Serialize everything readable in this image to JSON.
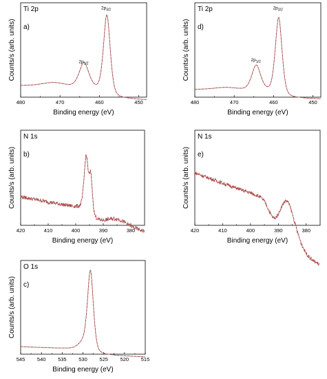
{
  "chart_data": [
    {
      "id": "a",
      "type": "line",
      "title": "Ti 2p",
      "letter": "a)",
      "xlabel": "Binding energy (eV)",
      "ylabel": "Counts/s (arb. units)",
      "xlim": [
        480,
        448
      ],
      "ylim": [
        0,
        100
      ],
      "xticks": [
        480,
        470,
        460,
        450
      ],
      "peaks": [
        {
          "x": 458.1,
          "h": 84,
          "w": 0.9
        },
        {
          "x": 463.9,
          "h": 27,
          "w": 1.3
        },
        {
          "x": 471.5,
          "h": 5,
          "w": 3.5
        }
      ],
      "baseline": {
        "left": 12,
        "right": 5,
        "step_x": 458.5,
        "step_h": 8
      },
      "annotations": [
        {
          "x": 464.0,
          "y": 36,
          "main": "2p",
          "sub": "1/2"
        },
        {
          "x": 458.3,
          "y": 93,
          "main": "2p",
          "sub": "3/2"
        }
      ]
    },
    {
      "id": "d",
      "type": "line",
      "title": "Ti 2p",
      "letter": "d)",
      "xlabel": "Binding energy (eV)",
      "ylabel": "Counts/s (arb. units)",
      "xlim": [
        480,
        448
      ],
      "ylim": [
        0,
        100
      ],
      "xticks": [
        480,
        470,
        460,
        450
      ],
      "peaks": [
        {
          "x": 458.7,
          "h": 82,
          "w": 0.9
        },
        {
          "x": 464.4,
          "h": 27,
          "w": 1.2
        },
        {
          "x": 472.0,
          "h": 3,
          "w": 3.5
        }
      ],
      "baseline": {
        "left": 8,
        "right": 4,
        "step_x": 459.0,
        "step_h": 6
      },
      "annotations": [
        {
          "x": 464.5,
          "y": 38,
          "main": "2p",
          "sub": "1/2"
        },
        {
          "x": 458.9,
          "y": 93,
          "main": "2p",
          "sub": "3/2"
        }
      ]
    },
    {
      "id": "b",
      "type": "line",
      "title": "N 1s",
      "letter": "b)",
      "xlabel": "Binding energy (eV)",
      "ylabel": "Counts/s (arb. units)",
      "xlim": [
        420,
        375
      ],
      "ylim": [
        0,
        100
      ],
      "xticks": [
        420,
        410,
        400,
        390,
        380
      ],
      "peaks": [
        {
          "x": 396.2,
          "h": 58,
          "w": 0.8
        },
        {
          "x": 394.5,
          "h": 38,
          "w": 0.6
        },
        {
          "x": 385.0,
          "h": 8,
          "w": 4.0
        }
      ],
      "baseline": {
        "left": 30,
        "right": 5,
        "step_x": 395.0,
        "step_h": 12
      },
      "noise": 2.0,
      "annotations": []
    },
    {
      "id": "e",
      "type": "line",
      "title": "N 1s",
      "letter": "e)",
      "xlabel": "Binding energy (eV)",
      "ylabel": "Counts/s (arb. units)",
      "xlim": [
        420,
        375
      ],
      "ylim": [
        0,
        100
      ],
      "xticks": [
        420,
        410,
        400,
        390,
        380
      ],
      "peaks": [
        {
          "x": 387.0,
          "h": 55,
          "w": 3.4
        }
      ],
      "baseline": {
        "left": 55,
        "right": 5,
        "step_x": 393.0,
        "step_h": 48
      },
      "noise": 1.8,
      "annotations": []
    },
    {
      "id": "c",
      "type": "line",
      "title": "O 1s",
      "letter": "c)",
      "xlabel": "Binding energy (eV)",
      "ylabel": "Counts/s (arb. units)",
      "xlim": [
        545,
        515
      ],
      "ylim": [
        0,
        100
      ],
      "xticks": [
        545,
        540,
        535,
        530,
        525,
        520,
        515
      ],
      "peaks": [
        {
          "x": 528.2,
          "h": 86,
          "w": 0.75
        },
        {
          "x": 530.0,
          "h": 7,
          "w": 1.2
        }
      ],
      "baseline": {
        "left": 8,
        "right": 2,
        "step_x": 528.8,
        "step_h": 5
      },
      "annotations": []
    }
  ]
}
